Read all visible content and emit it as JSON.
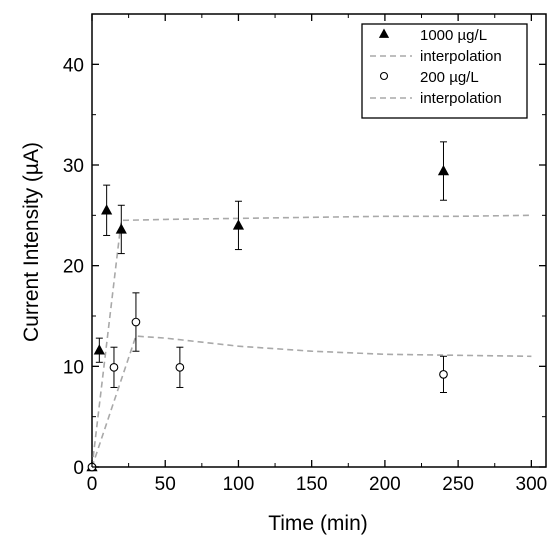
{
  "chart_data": {
    "type": "scatter",
    "xlabel": "Time (min)",
    "ylabel": "Current Intensity (µA)",
    "xlim": [
      0,
      310
    ],
    "ylim": [
      0,
      45
    ],
    "x_ticks": [
      0,
      50,
      100,
      150,
      200,
      250,
      300
    ],
    "y_ticks": [
      0,
      10,
      20,
      30,
      40
    ],
    "legend_position": "top-right",
    "grid": false,
    "series": [
      {
        "name": "1000 µg/L",
        "kind": "points",
        "marker": "filled-triangle",
        "color": "#000000",
        "x": [
          0,
          5,
          10,
          20,
          100,
          240
        ],
        "y": [
          0,
          11.6,
          25.5,
          23.6,
          24.0,
          29.4
        ],
        "yerr": [
          0,
          1.2,
          2.5,
          2.4,
          2.4,
          2.9
        ]
      },
      {
        "name": "interpolation",
        "kind": "line",
        "color": "#a9a9a9",
        "x": [
          0,
          20,
          50,
          100,
          150,
          200,
          250,
          300
        ],
        "y": [
          0,
          24.5,
          24.6,
          24.7,
          24.8,
          24.9,
          24.9,
          25.0
        ]
      },
      {
        "name": "200 µg/L",
        "kind": "points",
        "marker": "open-circle",
        "color": "#000000",
        "x": [
          0,
          15,
          30,
          60,
          240
        ],
        "y": [
          0,
          9.9,
          14.4,
          9.9,
          9.2
        ],
        "yerr": [
          0,
          2.0,
          2.9,
          2.0,
          1.8
        ]
      },
      {
        "name": "interpolation",
        "kind": "line",
        "color": "#a9a9a9",
        "x": [
          0,
          30,
          50,
          100,
          150,
          200,
          250,
          300
        ],
        "y": [
          0,
          13.0,
          12.8,
          12.0,
          11.5,
          11.2,
          11.1,
          11.0
        ]
      }
    ]
  }
}
